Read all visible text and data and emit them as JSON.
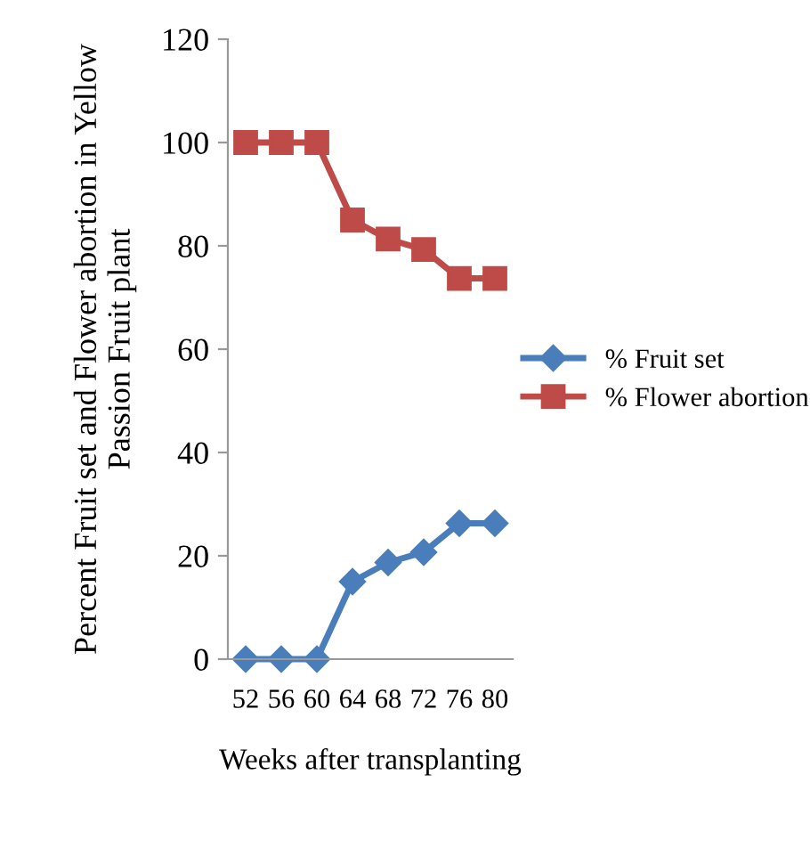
{
  "chart_data": {
    "type": "line",
    "xlabel": "Weeks after transplanting",
    "ylabel": "Percent Fruit set and Flower abortion in Yellow Passion Fruit plant",
    "categories": [
      "52",
      "56",
      "60",
      "64",
      "68",
      "72",
      "76",
      "80"
    ],
    "series": [
      {
        "name": "% Fruit set",
        "color": "#4a7ebb",
        "marker": "diamond",
        "values": [
          0,
          0,
          0,
          15,
          18.7,
          20.7,
          26.3,
          26.3
        ]
      },
      {
        "name": "% Flower abortion",
        "color": "#be4b48",
        "marker": "square",
        "values": [
          100,
          100,
          100,
          85,
          81.3,
          79.3,
          73.7,
          73.7
        ]
      }
    ],
    "ylim": [
      0,
      120
    ],
    "yticks": [
      0,
      20,
      40,
      60,
      80,
      100,
      120
    ],
    "grid": false,
    "legend": "right",
    "line_style": "solid"
  }
}
